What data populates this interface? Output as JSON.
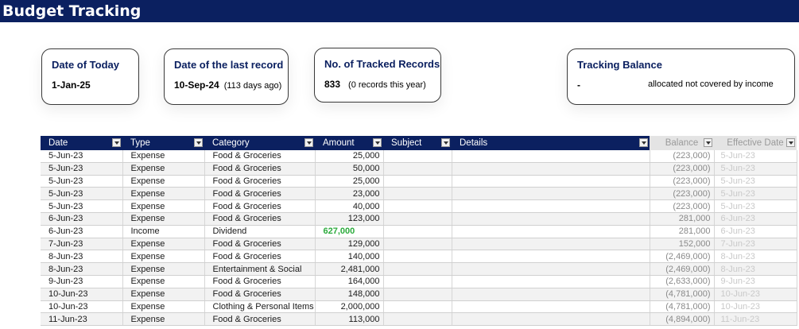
{
  "title": "Budget Tracking",
  "cards": {
    "today": {
      "label": "Date of Today",
      "value": "1-Jan-25"
    },
    "last_record": {
      "label": "Date of the last record",
      "value": "10-Sep-24",
      "note": "(113 days ago)"
    },
    "tracked": {
      "label": "No. of Tracked Records",
      "value": "833",
      "note": "(0 records this year)"
    },
    "balance": {
      "label": "Tracking Balance",
      "value": "-",
      "note": "allocated not covered by income"
    }
  },
  "table": {
    "headers": [
      "Date",
      "Type",
      "Category",
      "Amount",
      "Subject",
      "Details",
      "Balance",
      "Effective Date"
    ],
    "rows": [
      {
        "date": "5-Jun-23",
        "type": "Expense",
        "category": "Food & Groceries",
        "amount": "25,000",
        "subject": "",
        "details": "",
        "balance": "(223,000)",
        "effective": "5-Jun-23"
      },
      {
        "date": "5-Jun-23",
        "type": "Expense",
        "category": "Food & Groceries",
        "amount": "50,000",
        "subject": "",
        "details": "",
        "balance": "(223,000)",
        "effective": "5-Jun-23"
      },
      {
        "date": "5-Jun-23",
        "type": "Expense",
        "category": "Food & Groceries",
        "amount": "25,000",
        "subject": "",
        "details": "",
        "balance": "(223,000)",
        "effective": "5-Jun-23"
      },
      {
        "date": "5-Jun-23",
        "type": "Expense",
        "category": "Food & Groceries",
        "amount": "23,000",
        "subject": "",
        "details": "",
        "balance": "(223,000)",
        "effective": "5-Jun-23"
      },
      {
        "date": "5-Jun-23",
        "type": "Expense",
        "category": "Food & Groceries",
        "amount": "40,000",
        "subject": "",
        "details": "",
        "balance": "(223,000)",
        "effective": "5-Jun-23"
      },
      {
        "date": "6-Jun-23",
        "type": "Expense",
        "category": "Food & Groceries",
        "amount": "123,000",
        "subject": "",
        "details": "",
        "balance": "281,000",
        "effective": "6-Jun-23"
      },
      {
        "date": "6-Jun-23",
        "type": "Income",
        "category": "Dividend",
        "amount": "627,000",
        "subject": "",
        "details": "",
        "balance": "281,000",
        "effective": "6-Jun-23"
      },
      {
        "date": "7-Jun-23",
        "type": "Expense",
        "category": "Food & Groceries",
        "amount": "129,000",
        "subject": "",
        "details": "",
        "balance": "152,000",
        "effective": "7-Jun-23"
      },
      {
        "date": "8-Jun-23",
        "type": "Expense",
        "category": "Food & Groceries",
        "amount": "140,000",
        "subject": "",
        "details": "",
        "balance": "(2,469,000)",
        "effective": "8-Jun-23"
      },
      {
        "date": "8-Jun-23",
        "type": "Expense",
        "category": "Entertainment & Social",
        "amount": "2,481,000",
        "subject": "",
        "details": "",
        "balance": "(2,469,000)",
        "effective": "8-Jun-23"
      },
      {
        "date": "9-Jun-23",
        "type": "Expense",
        "category": "Food & Groceries",
        "amount": "164,000",
        "subject": "",
        "details": "",
        "balance": "(2,633,000)",
        "effective": "9-Jun-23"
      },
      {
        "date": "10-Jun-23",
        "type": "Expense",
        "category": "Food & Groceries",
        "amount": "148,000",
        "subject": "",
        "details": "",
        "balance": "(4,781,000)",
        "effective": "10-Jun-23"
      },
      {
        "date": "10-Jun-23",
        "type": "Expense",
        "category": "Clothing & Personal Items",
        "amount": "2,000,000",
        "subject": "",
        "details": "",
        "balance": "(4,781,000)",
        "effective": "10-Jun-23"
      },
      {
        "date": "11-Jun-23",
        "type": "Expense",
        "category": "Food & Groceries",
        "amount": "113,000",
        "subject": "",
        "details": "",
        "balance": "(4,894,000)",
        "effective": "11-Jun-23"
      }
    ]
  },
  "colors": {
    "header_navy": "#0b2060",
    "income_green": "#2bab3c",
    "dimmed_header": "#e4e4e4"
  },
  "icons": {
    "filter_dropdown": "chevron-down-icon"
  }
}
